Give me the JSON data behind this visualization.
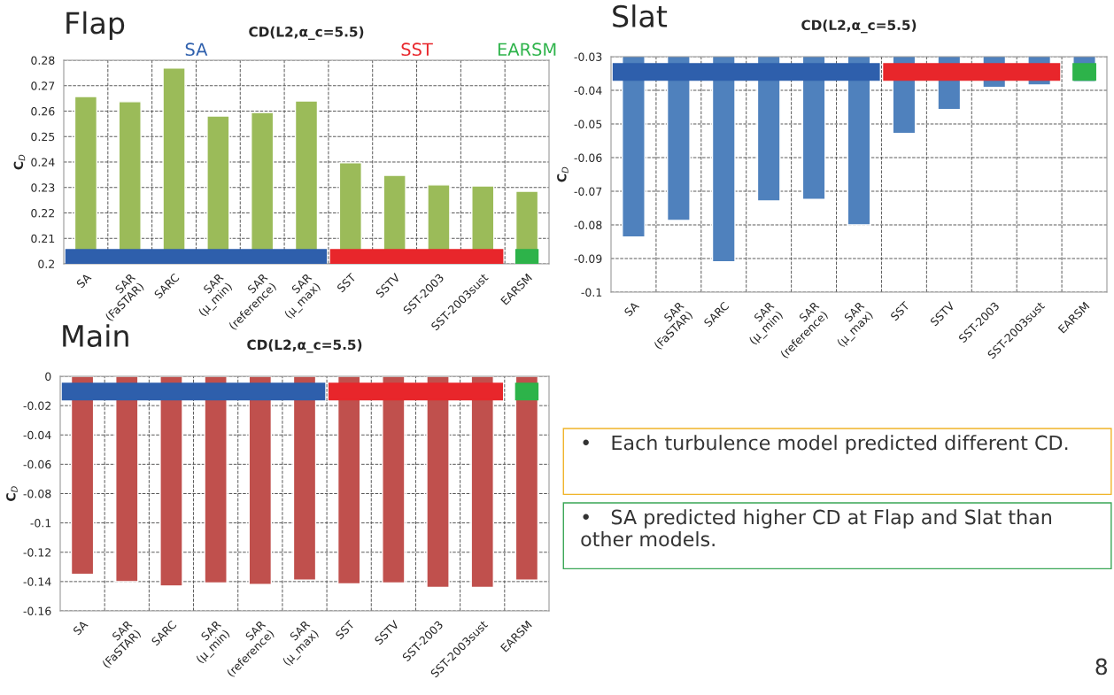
{
  "chart_data": [
    {
      "type": "bar",
      "title": "Flap",
      "subtitle": "CD(L2,α_c=5.5)",
      "ylabel": "C$_{D}$",
      "categories": [
        "SA",
        "SAR\n(FaSTAR)",
        "SARC",
        "SAR\n(μ_min)",
        "SAR\n(reference)",
        "SAR\n(μ_max)",
        "SST",
        "SSTV",
        "SST-2003",
        "SST-2003sust",
        "EARSM"
      ],
      "series": [
        {
          "color": "#9bbb59",
          "values": [
            0.2657,
            0.2637,
            0.2769,
            0.2581,
            0.2595,
            0.264,
            0.2397,
            0.2348,
            0.231,
            0.2306,
            0.2285
          ]
        }
      ],
      "ylim": [
        0.2,
        0.28
      ],
      "yticks": [
        0.2,
        0.21,
        0.22,
        0.23,
        0.24,
        0.25,
        0.26,
        0.27,
        0.28
      ],
      "grid": true,
      "annotations": [
        "SA",
        "SST",
        "EARSM"
      ]
    },
    {
      "type": "bar",
      "title": "Slat",
      "subtitle": "CD(L2,α_c=5.5)",
      "ylabel": "C$_{D}$",
      "categories": [
        "SA",
        "SAR\n(FaSTAR)",
        "SARC",
        "SAR\n(μ_min)",
        "SAR\n(reference)",
        "SAR\n(μ_max)",
        "SST",
        "SSTV",
        "SST-2003",
        "SST-2003sust",
        "EARSM"
      ],
      "series": [
        {
          "color": "#4f81bd",
          "values": [
            -0.0836,
            -0.0787,
            -0.091,
            -0.0729,
            -0.0724,
            -0.08,
            -0.0528,
            -0.0457,
            -0.0391,
            -0.0384,
            -0.0374
          ]
        }
      ],
      "ylim": [
        -0.1,
        -0.03
      ],
      "yticks": [
        -0.1,
        -0.09,
        -0.08,
        -0.07,
        -0.06,
        -0.05,
        -0.04,
        -0.03
      ],
      "grid": true
    },
    {
      "type": "bar",
      "title": "Main",
      "subtitle": "CD(L2,α_c=5.5)",
      "ylabel": "C$_{D}$",
      "categories": [
        "SA",
        "SAR\n(FaSTAR)",
        "SARC",
        "SAR\n(μ_min)",
        "SAR\n(reference)",
        "SAR\n(μ_max)",
        "SST",
        "SSTV",
        "SST-2003",
        "SST-2003sust",
        "EARSM"
      ],
      "series": [
        {
          "color": "#c0504d",
          "values": [
            -0.135,
            -0.14,
            -0.143,
            -0.141,
            -0.142,
            -0.139,
            -0.1415,
            -0.141,
            -0.144,
            -0.144,
            -0.139
          ]
        }
      ],
      "ylim": [
        -0.16,
        0
      ],
      "yticks": [
        -0.16,
        -0.14,
        -0.12,
        -0.1,
        -0.08,
        -0.06,
        -0.04,
        -0.02,
        0
      ],
      "grid": true
    },
    {
      "type": "other",
      "annotations": [
        "•   Each turbulence model predicted different CD.",
        "•   SA predicted higher CD at Flap and Slat than other models.",
        "8"
      ]
    }
  ]
}
